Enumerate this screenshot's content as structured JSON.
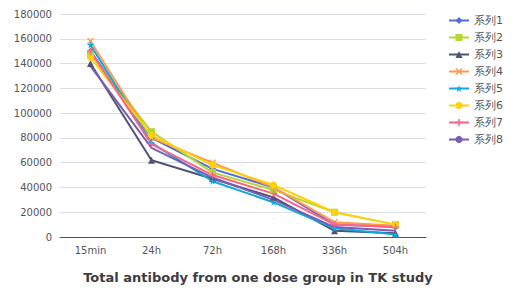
{
  "chart_data": {
    "type": "line",
    "title": "Total antibody from one dose group in TK study",
    "categories": [
      "15min",
      "24h",
      "72h",
      "168h",
      "336h",
      "504h"
    ],
    "series": [
      {
        "name": "系列1",
        "values": [
          150000,
          80000,
          55000,
          40000,
          10000,
          8000
        ],
        "marker": "diamond"
      },
      {
        "name": "系列2",
        "values": [
          148000,
          85000,
          52000,
          38000,
          20000,
          10000
        ],
        "marker": "square"
      },
      {
        "name": "系列3",
        "values": [
          140000,
          62000,
          47000,
          32000,
          5000,
          3000
        ],
        "marker": "triangle"
      },
      {
        "name": "系列4",
        "values": [
          158000,
          80000,
          60000,
          40000,
          12000,
          9000
        ],
        "marker": "x"
      },
      {
        "name": "系列5",
        "values": [
          155000,
          76000,
          45000,
          28000,
          7000,
          2000
        ],
        "marker": "star"
      },
      {
        "name": "系列6",
        "values": [
          145000,
          82000,
          58000,
          42000,
          20000,
          10000
        ],
        "marker": "circle"
      },
      {
        "name": "系列7",
        "values": [
          150000,
          75000,
          50000,
          35000,
          10000,
          8000
        ],
        "marker": "plus"
      },
      {
        "name": "系列8",
        "values": [
          138000,
          72000,
          48000,
          30000,
          8000,
          5000
        ],
        "marker": "none"
      }
    ],
    "ylim": [
      0,
      180000
    ],
    "yticks": [
      0,
      20000,
      40000,
      60000,
      80000,
      100000,
      120000,
      140000,
      160000,
      180000
    ],
    "grid": true,
    "legend": "right"
  }
}
